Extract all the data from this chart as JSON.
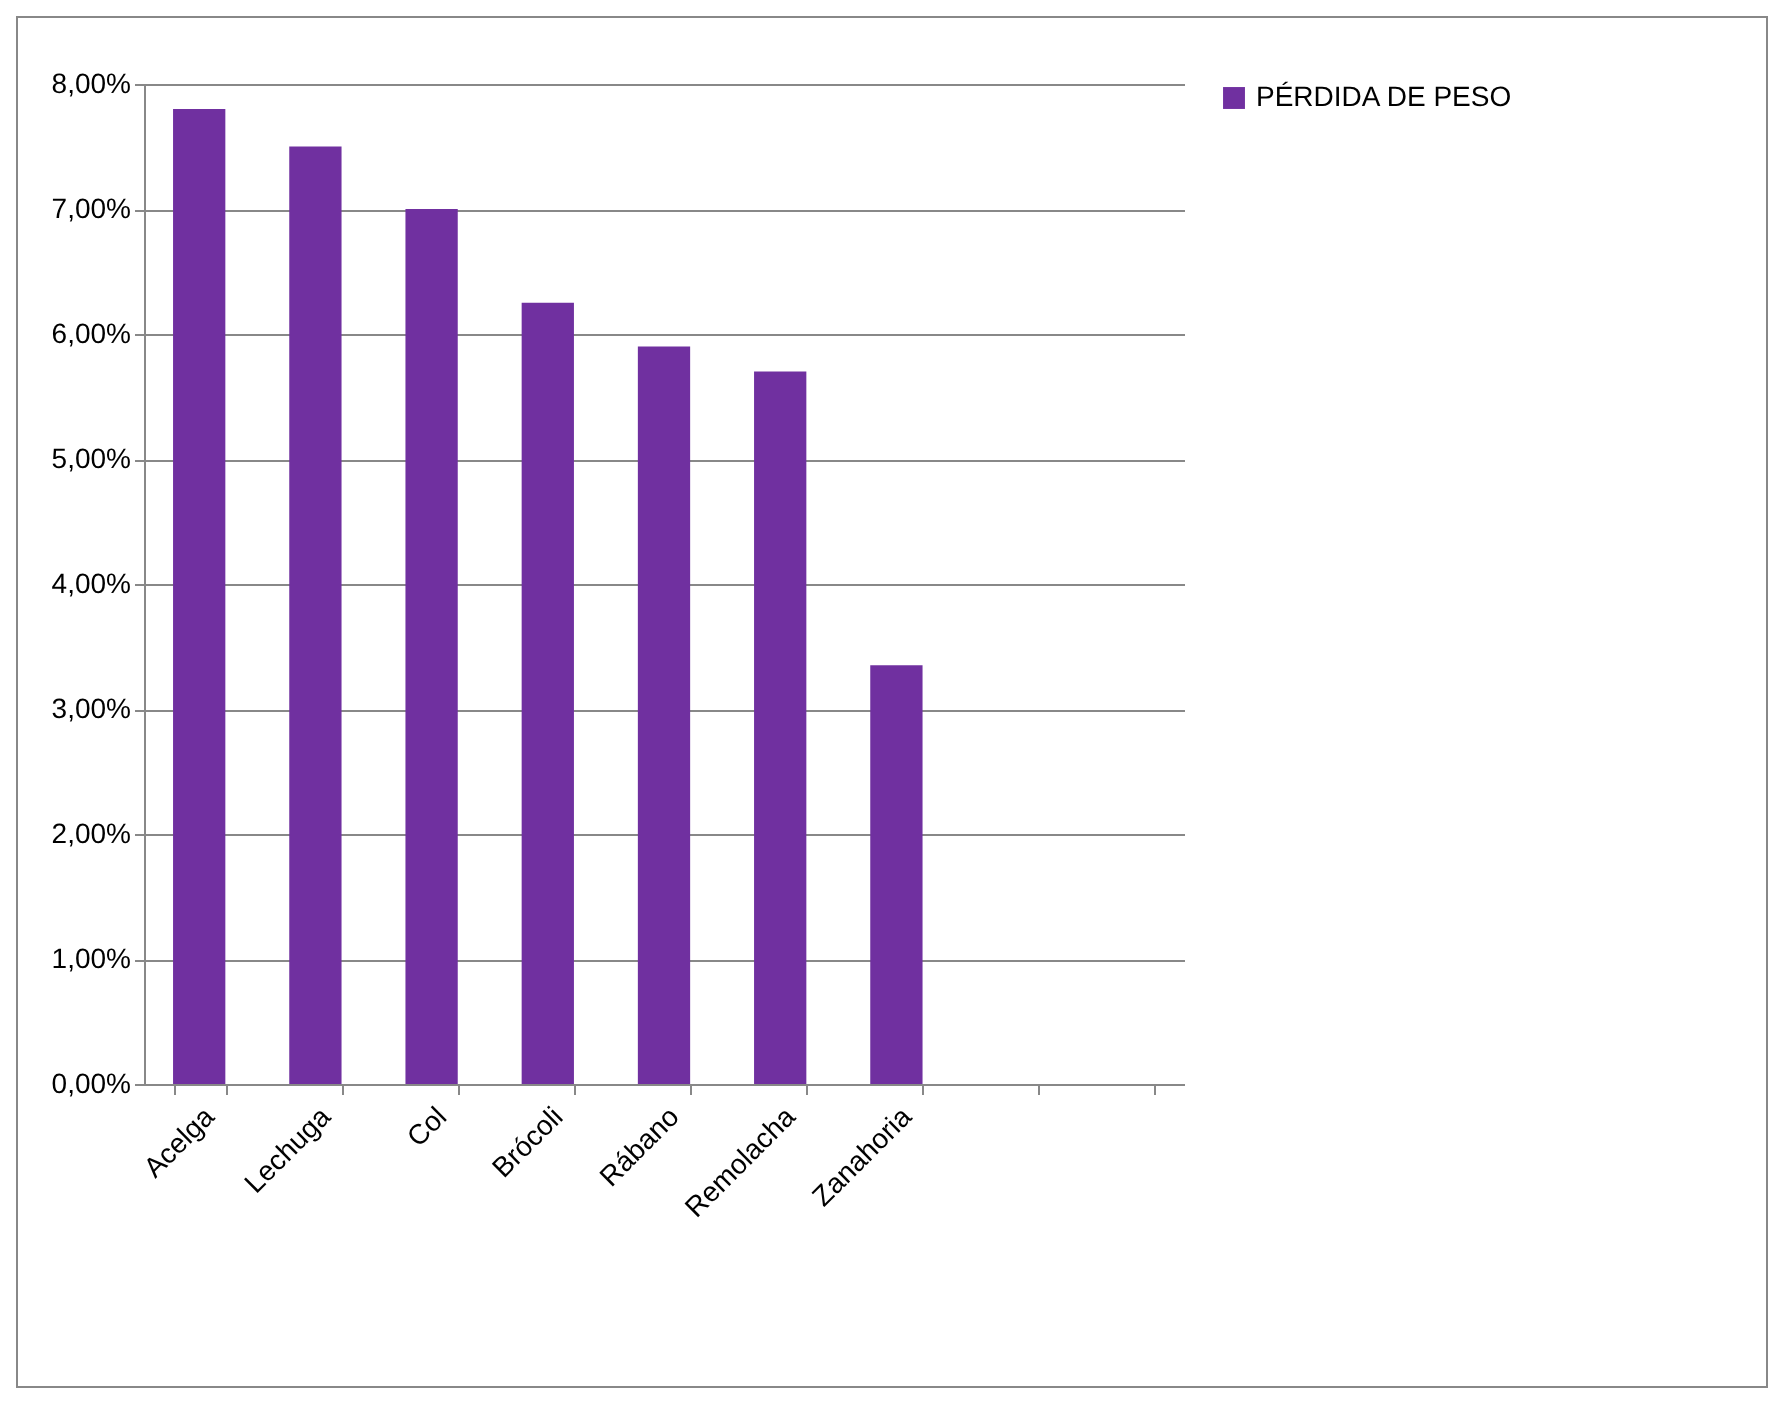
{
  "chart_data": {
    "type": "bar",
    "categories": [
      "Acelga",
      "Lechuga",
      "Col",
      "Brócoli",
      "Rábano",
      "Remolacha",
      "Zanahoria",
      null,
      null
    ],
    "series": [
      {
        "name": "PÉRDIDA DE PESO",
        "color": "#7030a0",
        "values": [
          7.8,
          7.5,
          7.0,
          6.25,
          5.9,
          5.7,
          3.35,
          null,
          null
        ]
      }
    ],
    "ylim": [
      0,
      8
    ],
    "yticks": [
      {
        "value": 0,
        "label": "0,00%"
      },
      {
        "value": 1,
        "label": "1,00%"
      },
      {
        "value": 2,
        "label": "2,00%"
      },
      {
        "value": 3,
        "label": "3,00%"
      },
      {
        "value": 4,
        "label": "4,00%"
      },
      {
        "value": 5,
        "label": "5,00%"
      },
      {
        "value": 6,
        "label": "6,00%"
      },
      {
        "value": 7,
        "label": "7,00%"
      },
      {
        "value": 8,
        "label": "8,00%"
      }
    ],
    "grid": "y",
    "legend": "right"
  }
}
